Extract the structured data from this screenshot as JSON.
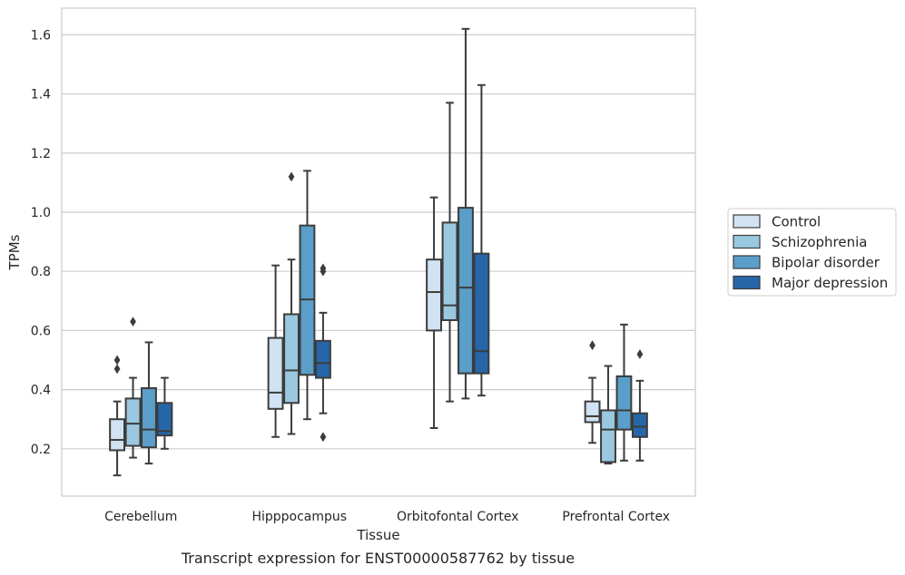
{
  "caption": "Transcript expression for ENST00000587762 by tissue",
  "chart_data": {
    "type": "box",
    "xlabel": "Tissue",
    "ylabel": "TPMs",
    "ylim": [
      0.04,
      1.69
    ],
    "yticks": [
      0.2,
      0.4,
      0.6,
      0.8,
      1.0,
      1.2,
      1.4,
      1.6
    ],
    "ytick_labels": [
      "0.2",
      "0.4",
      "0.6",
      "0.8",
      "1.0",
      "1.2",
      "1.4",
      "1.6"
    ],
    "grid": "horizontal",
    "legend_position": "right",
    "categories": [
      "Cerebellum",
      "Hipppocampus",
      "Orbitofontal Cortex",
      "Prefrontal Cortex"
    ],
    "series": [
      {
        "name": "Control",
        "color": "#d1e2f2",
        "boxes": [
          {
            "whisker_low": 0.11,
            "q1": 0.195,
            "median": 0.23,
            "q3": 0.3,
            "whisker_high": 0.36,
            "outliers": [
              0.47,
              0.5
            ]
          },
          {
            "whisker_low": 0.24,
            "q1": 0.335,
            "median": 0.39,
            "q3": 0.575,
            "whisker_high": 0.82,
            "outliers": []
          },
          {
            "whisker_low": 0.27,
            "q1": 0.6,
            "median": 0.73,
            "q3": 0.84,
            "whisker_high": 1.05,
            "outliers": []
          },
          {
            "whisker_low": 0.22,
            "q1": 0.29,
            "median": 0.31,
            "q3": 0.36,
            "whisker_high": 0.44,
            "outliers": [
              0.55
            ]
          }
        ]
      },
      {
        "name": "Schizophrenia",
        "color": "#9ac8e0",
        "boxes": [
          {
            "whisker_low": 0.17,
            "q1": 0.21,
            "median": 0.285,
            "q3": 0.37,
            "whisker_high": 0.44,
            "outliers": [
              0.63
            ]
          },
          {
            "whisker_low": 0.25,
            "q1": 0.355,
            "median": 0.465,
            "q3": 0.655,
            "whisker_high": 0.84,
            "outliers": [
              1.12
            ]
          },
          {
            "whisker_low": 0.36,
            "q1": 0.635,
            "median": 0.685,
            "q3": 0.965,
            "whisker_high": 1.37,
            "outliers": []
          },
          {
            "whisker_low": 0.15,
            "q1": 0.155,
            "median": 0.265,
            "q3": 0.33,
            "whisker_high": 0.48,
            "outliers": []
          }
        ]
      },
      {
        "name": "Bipolar disorder",
        "color": "#5a9ec9",
        "boxes": [
          {
            "whisker_low": 0.15,
            "q1": 0.205,
            "median": 0.265,
            "q3": 0.405,
            "whisker_high": 0.56,
            "outliers": []
          },
          {
            "whisker_low": 0.3,
            "q1": 0.45,
            "median": 0.705,
            "q3": 0.955,
            "whisker_high": 1.14,
            "outliers": []
          },
          {
            "whisker_low": 0.37,
            "q1": 0.455,
            "median": 0.745,
            "q3": 1.015,
            "whisker_high": 1.62,
            "outliers": []
          },
          {
            "whisker_low": 0.16,
            "q1": 0.265,
            "median": 0.33,
            "q3": 0.445,
            "whisker_high": 0.62,
            "outliers": []
          }
        ]
      },
      {
        "name": "Major depression",
        "color": "#2666a8",
        "boxes": [
          {
            "whisker_low": 0.2,
            "q1": 0.245,
            "median": 0.26,
            "q3": 0.355,
            "whisker_high": 0.44,
            "outliers": []
          },
          {
            "whisker_low": 0.32,
            "q1": 0.44,
            "median": 0.49,
            "q3": 0.565,
            "whisker_high": 0.66,
            "outliers": [
              0.24,
              0.8,
              0.81
            ]
          },
          {
            "whisker_low": 0.38,
            "q1": 0.455,
            "median": 0.53,
            "q3": 0.86,
            "whisker_high": 1.43,
            "outliers": []
          },
          {
            "whisker_low": 0.16,
            "q1": 0.24,
            "median": 0.275,
            "q3": 0.32,
            "whisker_high": 0.43,
            "outliers": [
              0.52
            ]
          }
        ]
      }
    ]
  }
}
